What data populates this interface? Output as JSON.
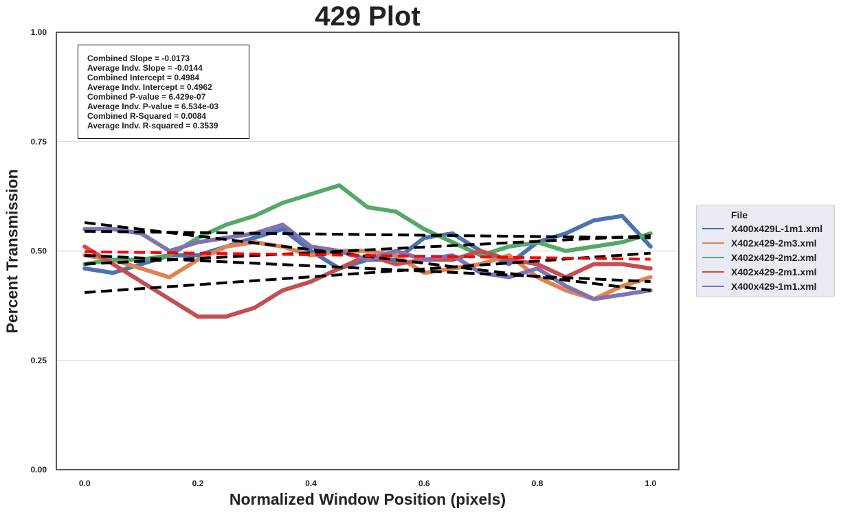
{
  "chart_data": {
    "type": "line",
    "title": "429 Plot",
    "xlabel": "Normalized Window Position (pixels)",
    "ylabel": "Percent Transmission",
    "xlim": [
      -0.05,
      1.05
    ],
    "ylim": [
      0.0,
      1.0
    ],
    "x_ticks": [
      "0.0",
      "0.2",
      "0.4",
      "0.6",
      "0.8",
      "1.0"
    ],
    "y_ticks": [
      "0.00",
      "0.25",
      "0.50",
      "0.75",
      "1.00"
    ],
    "grid": "horizontal",
    "legend_position": "right-outside",
    "legend_title": "File",
    "stats": [
      "Combined Slope = -0.0173",
      "Average Indv. Slope = -0.0144",
      "Combined Intercept = 0.4984",
      "Average Indv. Intercept = 0.4962",
      "Combined P-value = 6.429e-07",
      "Average Indv. P-value = 6.534e-03",
      "Combined R-Squared = 0.0084",
      "Average Indv. R-squared = 0.3539"
    ],
    "series": [
      {
        "name": "X400x429L-1m1.xml",
        "color": "#4c72b0",
        "x": [
          0,
          0.05,
          0.1,
          0.15,
          0.2,
          0.25,
          0.3,
          0.35,
          0.4,
          0.45,
          0.5,
          0.55,
          0.6,
          0.65,
          0.7,
          0.75,
          0.8,
          0.85,
          0.9,
          0.95,
          1.0
        ],
        "y": [
          0.46,
          0.45,
          0.47,
          0.49,
          0.49,
          0.51,
          0.53,
          0.55,
          0.5,
          0.46,
          0.48,
          0.48,
          0.53,
          0.54,
          0.5,
          0.47,
          0.52,
          0.54,
          0.57,
          0.58,
          0.51
        ]
      },
      {
        "name": "X402x429-2m3.xml",
        "color": "#dd8452",
        "x": [
          0,
          0.05,
          0.1,
          0.15,
          0.2,
          0.25,
          0.3,
          0.35,
          0.4,
          0.45,
          0.5,
          0.55,
          0.6,
          0.65,
          0.7,
          0.75,
          0.8,
          0.85,
          0.9,
          0.95,
          1.0
        ],
        "y": [
          0.49,
          0.48,
          0.46,
          0.44,
          0.48,
          0.51,
          0.52,
          0.51,
          0.49,
          0.5,
          0.5,
          0.49,
          0.45,
          0.46,
          0.47,
          0.49,
          0.44,
          0.41,
          0.39,
          0.42,
          0.44
        ]
      },
      {
        "name": "X402x429-2m2.xml",
        "color": "#55a868",
        "x": [
          0,
          0.05,
          0.1,
          0.15,
          0.2,
          0.25,
          0.3,
          0.35,
          0.4,
          0.45,
          0.5,
          0.55,
          0.6,
          0.65,
          0.7,
          0.75,
          0.8,
          0.85,
          0.9,
          0.95,
          1.0
        ],
        "y": [
          0.47,
          0.48,
          0.48,
          0.49,
          0.53,
          0.56,
          0.58,
          0.61,
          0.63,
          0.65,
          0.6,
          0.59,
          0.55,
          0.52,
          0.49,
          0.51,
          0.52,
          0.5,
          0.51,
          0.52,
          0.54
        ]
      },
      {
        "name": "X402x429-2m1.xml",
        "color": "#c44e52",
        "x": [
          0,
          0.05,
          0.1,
          0.15,
          0.2,
          0.25,
          0.3,
          0.35,
          0.4,
          0.45,
          0.5,
          0.55,
          0.6,
          0.65,
          0.7,
          0.75,
          0.8,
          0.85,
          0.9,
          0.95,
          1.0
        ],
        "y": [
          0.51,
          0.47,
          0.43,
          0.39,
          0.35,
          0.35,
          0.37,
          0.41,
          0.43,
          0.46,
          0.49,
          0.47,
          0.48,
          0.48,
          0.5,
          0.48,
          0.47,
          0.44,
          0.47,
          0.47,
          0.46
        ]
      },
      {
        "name": "X400x429-1m1.xml",
        "color": "#8172b2",
        "x": [
          0,
          0.05,
          0.1,
          0.15,
          0.2,
          0.25,
          0.3,
          0.35,
          0.4,
          0.45,
          0.5,
          0.55,
          0.6,
          0.65,
          0.7,
          0.75,
          0.8,
          0.85,
          0.9,
          0.95,
          1.0
        ],
        "y": [
          0.55,
          0.55,
          0.54,
          0.5,
          0.52,
          0.53,
          0.54,
          0.56,
          0.51,
          0.5,
          0.48,
          0.5,
          0.48,
          0.49,
          0.45,
          0.44,
          0.46,
          0.42,
          0.39,
          0.4,
          0.41
        ]
      }
    ],
    "fit_lines": [
      {
        "color": "#000000",
        "y_at_x0": 0.47,
        "y_at_x1": 0.535
      },
      {
        "color": "#000000",
        "y_at_x0": 0.49,
        "y_at_x1": 0.43
      },
      {
        "color": "#000000",
        "y_at_x0": 0.545,
        "y_at_x1": 0.53
      },
      {
        "color": "#000000",
        "y_at_x0": 0.405,
        "y_at_x1": 0.495
      },
      {
        "color": "#000000",
        "y_at_x0": 0.565,
        "y_at_x1": 0.41
      },
      {
        "color": "#ff0000",
        "y_at_x0": 0.4984,
        "y_at_x1": 0.4811
      }
    ]
  }
}
